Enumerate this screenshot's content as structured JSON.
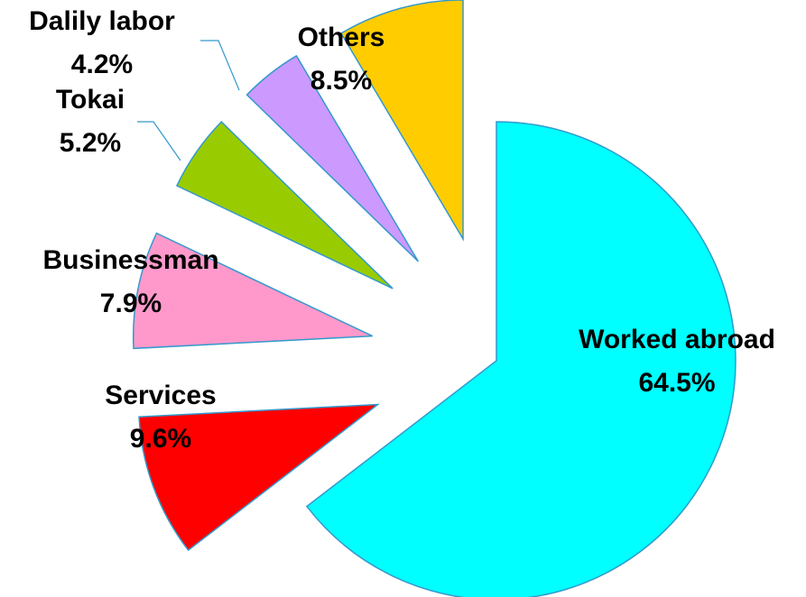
{
  "chart_data": {
    "type": "pie",
    "categories": [
      "Worked abroad",
      "Services",
      "Businessman",
      "Tokai",
      "Dalily labor",
      "Others"
    ],
    "values": [
      64.5,
      9.6,
      7.9,
      5.2,
      4.2,
      8.5
    ],
    "value_labels": [
      "64.5%",
      "9.6%",
      "7.9%",
      "5.2%",
      "4.2%",
      "8.5%"
    ],
    "colors": [
      "#00ffff",
      "#ff0000",
      "#ff99cc",
      "#99cc00",
      "#cc99ff",
      "#ffcc00"
    ]
  }
}
